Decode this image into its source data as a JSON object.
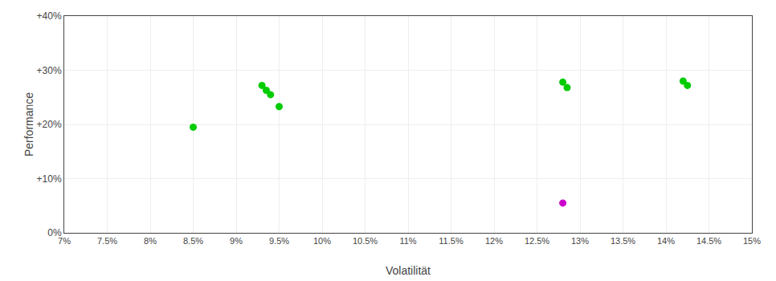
{
  "chart_data": {
    "type": "scatter",
    "xlabel": "Volatilität",
    "ylabel": "Performance",
    "series": [
      {
        "color": "#00cc00",
        "x": [
          0.085,
          0.093,
          0.0935,
          0.094,
          0.095,
          0.128,
          0.1285,
          0.142,
          0.1425
        ],
        "values": [
          0.195,
          0.272,
          0.263,
          0.255,
          0.233,
          0.278,
          0.268,
          0.28,
          0.272
        ]
      },
      {
        "color": "#cc00cc",
        "x": [
          0.128
        ],
        "values": [
          0.055
        ]
      }
    ],
    "xlim": [
      0.07,
      0.15
    ],
    "ylim": [
      0.0,
      0.4
    ],
    "xticks": [
      {
        "value": 0.07,
        "label": "7%"
      },
      {
        "value": 0.075,
        "label": "7.5%"
      },
      {
        "value": 0.08,
        "label": "8%"
      },
      {
        "value": 0.085,
        "label": "8.5%"
      },
      {
        "value": 0.09,
        "label": "9%"
      },
      {
        "value": 0.095,
        "label": "9.5%"
      },
      {
        "value": 0.1,
        "label": "10%"
      },
      {
        "value": 0.105,
        "label": "10.5%"
      },
      {
        "value": 0.11,
        "label": "11%"
      },
      {
        "value": 0.115,
        "label": "11.5%"
      },
      {
        "value": 0.12,
        "label": "12%"
      },
      {
        "value": 0.125,
        "label": "12.5%"
      },
      {
        "value": 0.13,
        "label": "13%"
      },
      {
        "value": 0.135,
        "label": "13.5%"
      },
      {
        "value": 0.14,
        "label": "14%"
      },
      {
        "value": 0.145,
        "label": "14.5%"
      },
      {
        "value": 0.15,
        "label": "15%"
      }
    ],
    "yticks": [
      {
        "value": 0.0,
        "label": "0%"
      },
      {
        "value": 0.1,
        "label": "+10%"
      },
      {
        "value": 0.2,
        "label": "+20%"
      },
      {
        "value": 0.3,
        "label": "+30%"
      },
      {
        "value": 0.4,
        "label": "+40%"
      }
    ],
    "grid": true
  }
}
